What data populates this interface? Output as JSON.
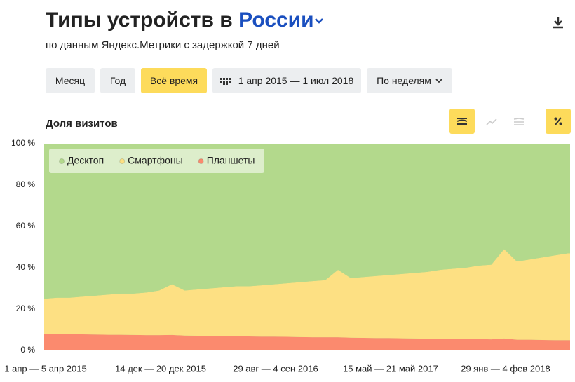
{
  "header": {
    "title": "Типы устройств в",
    "region": "России",
    "subtitle": "по данным Яндекс.Метрики с задержкой 7 дней"
  },
  "controls": {
    "periods": [
      "Месяц",
      "Год",
      "Всё время"
    ],
    "active": 2,
    "date_range": "1 апр 2015 — 1 июл 2018",
    "grouping": "По неделям"
  },
  "chart_data": {
    "type": "stacked_area",
    "title": "Доля визитов",
    "categories": [
      "1 апр — 5 апр 2015",
      null,
      null,
      null,
      null,
      null,
      null,
      null,
      null,
      "14 дек — 20 дек 2015",
      null,
      null,
      null,
      null,
      null,
      null,
      null,
      null,
      "29 авг — 4 сен 2016",
      null,
      null,
      null,
      null,
      null,
      null,
      null,
      null,
      "15 май — 21 май 2017",
      null,
      null,
      null,
      null,
      null,
      null,
      null,
      null,
      "29 янв — 4 фев 2018",
      null,
      null,
      null,
      null,
      null
    ],
    "series": [
      {
        "name": "Десктоп",
        "color": "#b3d98c",
        "values": [
          75,
          74.5,
          74.5,
          74,
          73.5,
          73,
          72.5,
          72.5,
          72,
          71,
          68,
          71,
          70.5,
          70,
          69.5,
          69,
          69,
          68.5,
          68,
          67.5,
          67,
          66.5,
          66,
          61,
          65,
          64.5,
          64,
          63.5,
          63,
          62.5,
          62,
          61,
          60.5,
          60,
          59,
          58.5,
          51,
          57,
          56,
          55,
          54,
          53
        ]
      },
      {
        "name": "Смартфоны",
        "color": "#fde083",
        "values": [
          17,
          17.6,
          17.6,
          18.2,
          18.8,
          19.4,
          19.9,
          20,
          20.6,
          21.6,
          24.5,
          21.8,
          22.4,
          23,
          23.6,
          24.1,
          24.2,
          24.8,
          25.3,
          25.9,
          26.5,
          27.1,
          27.6,
          32.6,
          28.8,
          29.4,
          30,
          30.5,
          31.1,
          31.7,
          32.3,
          33.3,
          33.9,
          34.5,
          35.5,
          36.1,
          43.2,
          37.8,
          38.8,
          39.9,
          41,
          42
        ]
      },
      {
        "name": "Планшеты",
        "color": "#fb8a6e",
        "values": [
          8,
          7.9,
          7.9,
          7.8,
          7.7,
          7.6,
          7.6,
          7.5,
          7.4,
          7.4,
          7.5,
          7.2,
          7.1,
          7,
          6.9,
          6.9,
          6.8,
          6.7,
          6.7,
          6.6,
          6.5,
          6.4,
          6.4,
          6.4,
          6.2,
          6.1,
          6,
          6,
          5.9,
          5.8,
          5.7,
          5.7,
          5.6,
          5.5,
          5.5,
          5.4,
          5.8,
          5.2,
          5.2,
          5.1,
          5,
          5
        ]
      }
    ],
    "ylim": [
      0,
      100
    ],
    "yticks": [
      {
        "value": 0,
        "label": "0 %"
      },
      {
        "value": 20,
        "label": "20 %"
      },
      {
        "value": 40,
        "label": "40 %"
      },
      {
        "value": 60,
        "label": "60 %"
      },
      {
        "value": 80,
        "label": "80 %"
      },
      {
        "value": 100,
        "label": "100 %"
      }
    ],
    "grid": false,
    "legend": "top-left"
  }
}
